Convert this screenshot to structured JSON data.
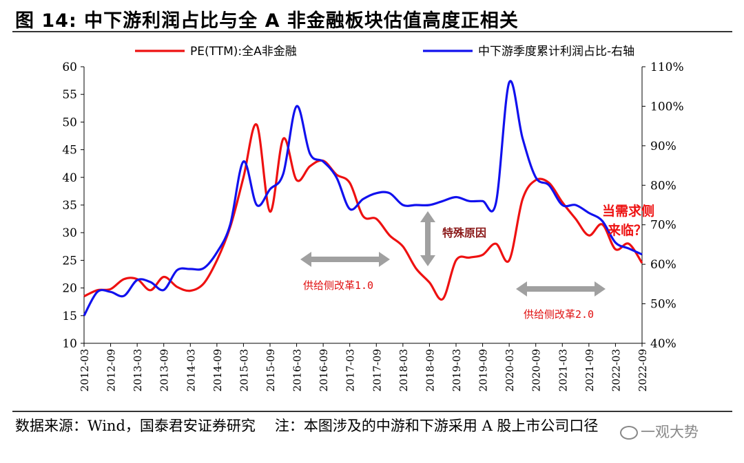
{
  "figure": {
    "title": "图 14:  中下游利润占比与全 A 非金融板块估值高度正相关",
    "source_prefix": "数据来源：",
    "source_text": "Wind，国泰君安证券研究",
    "note_prefix": "注：",
    "note_text": "本图涉及的中游和下游采用 A 股上市公司口径",
    "watermark": "一观大势"
  },
  "chart_data": {
    "type": "line",
    "x": [
      "2012-03",
      "2012-06",
      "2012-09",
      "2012-12",
      "2013-03",
      "2013-06",
      "2013-09",
      "2013-12",
      "2014-03",
      "2014-06",
      "2014-09",
      "2014-12",
      "2015-03",
      "2015-06",
      "2015-09",
      "2015-12",
      "2016-03",
      "2016-06",
      "2016-09",
      "2016-12",
      "2017-03",
      "2017-06",
      "2017-09",
      "2017-12",
      "2018-03",
      "2018-06",
      "2018-09",
      "2018-12",
      "2019-03",
      "2019-06",
      "2019-09",
      "2019-12",
      "2020-03",
      "2020-06",
      "2020-09",
      "2020-12",
      "2021-03",
      "2021-06",
      "2021-09",
      "2021-12",
      "2022-03",
      "2022-06",
      "2022-09"
    ],
    "tick_labels": [
      "2012-03",
      "2012-09",
      "2013-03",
      "2013-09",
      "2014-03",
      "2014-09",
      "2015-03",
      "2015-09",
      "2016-03",
      "2016-09",
      "2017-03",
      "2017-09",
      "2018-03",
      "2018-09",
      "2019-03",
      "2019-09",
      "2020-03",
      "2020-09",
      "2021-03",
      "2021-09",
      "2022-03",
      "2022-09"
    ],
    "series": [
      {
        "name": "PE(TTM):全A非金融",
        "axis": "left",
        "color": "#ee1111",
        "values": [
          18.5,
          19.6,
          19.8,
          21.6,
          21.6,
          19.6,
          22.0,
          20.2,
          19.5,
          20.8,
          25.0,
          31.0,
          40.0,
          49.5,
          33.8,
          47.0,
          39.5,
          42.0,
          43.0,
          40.5,
          39.0,
          33.0,
          32.5,
          29.5,
          27.5,
          23.5,
          21.0,
          18.0,
          25.0,
          25.5,
          26.0,
          28.0,
          25.0,
          36.0,
          39.5,
          39.0,
          35.5,
          32.5,
          29.5,
          31.5,
          27.0,
          28.0,
          24.5
        ]
      },
      {
        "name": "中下游季度累计利润占比-右轴",
        "axis": "right",
        "color": "#1111ee",
        "values": [
          47.0,
          53.0,
          53.0,
          52.0,
          56.0,
          55.5,
          53.5,
          58.5,
          58.8,
          59.0,
          63.0,
          70.0,
          86.0,
          75.0,
          79.0,
          83.0,
          100.0,
          88.0,
          86.0,
          82.0,
          74.0,
          76.5,
          78.0,
          78.0,
          75.0,
          75.0,
          75.0,
          76.0,
          77.0,
          76.0,
          76.0,
          75.5,
          106.0,
          92.0,
          82.0,
          80.0,
          75.0,
          75.0,
          73.0,
          71.0,
          65.5,
          64.0,
          62.5
        ]
      }
    ],
    "left_axis": {
      "min": 10,
      "max": 60,
      "step": 5,
      "ticks": [
        "10",
        "15",
        "20",
        "25",
        "30",
        "35",
        "40",
        "45",
        "50",
        "55",
        "60"
      ]
    },
    "right_axis": {
      "min": 40,
      "max": 110,
      "step": 10,
      "ticks": [
        "40%",
        "50%",
        "60%",
        "70%",
        "80%",
        "90%",
        "100%",
        "110%"
      ]
    },
    "legend_position": "top",
    "annotations": {
      "reform1": "供给侧改革1.0",
      "reform2": "供给侧改革2.0",
      "special": "特殊原因",
      "demand_line1": "当需求侧",
      "demand_line2": "来临？"
    }
  }
}
